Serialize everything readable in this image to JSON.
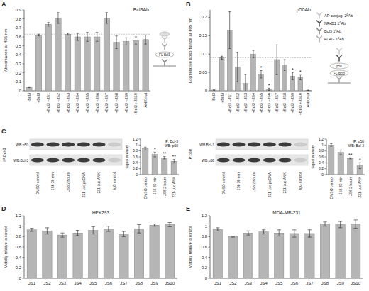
{
  "chart_data": [
    {
      "panel": "A",
      "type": "bar",
      "title": "Bcl3Ab",
      "y_label": "Absorbance at 405 nm",
      "categories": [
        "-Bcl3",
        "+Bcl3",
        "+Bcl3 +JS1",
        "+Bcl3 +JS2",
        "+Bcl3 +JS3",
        "+Bcl3 +JS4",
        "+Bcl3 +JS5",
        "+Bcl3 +JS6",
        "+Bcl3 +JS7",
        "+Bcl3 +JS8",
        "+Bcl3 +JS9",
        "+Bcl3 +JS10",
        "ANKmut"
      ],
      "values": [
        0.04,
        0.62,
        0.74,
        0.81,
        0.63,
        0.6,
        0.6,
        0.6,
        0.81,
        0.54,
        0.55,
        0.56,
        0.57
      ],
      "errors": [
        0.005,
        0.01,
        0.02,
        0.06,
        0.01,
        0.04,
        0.05,
        0.05,
        0.06,
        0.07,
        0.04,
        0.04,
        0.05
      ],
      "color": "#b5b5b5",
      "ylim": [
        0,
        0.9
      ],
      "yticks": [
        0,
        0.1,
        0.2,
        0.3,
        0.4,
        0.5,
        0.6,
        0.7,
        0.8,
        0.9
      ],
      "reference_line": 0.63,
      "diagram_labels": [
        "FL-Bcl3"
      ]
    },
    {
      "panel": "B",
      "type": "bar",
      "title": "p50Ab",
      "y_label": "Log relative absorbance at 405 nm",
      "categories": [
        "-Bcl3",
        "+Bcl3",
        "+Bcl3 +JS1",
        "+Bcl3 +JS2",
        "+Bcl3 +JS3",
        "+Bcl3 +JS4",
        "+Bcl3 +JS5",
        "+Bcl3 +JS6",
        "+Bcl3 +JS7",
        "+Bcl3 +JS8",
        "+Bcl3 +JS9",
        "+Bcl3 +JS10",
        "ANKmut"
      ],
      "values": [
        0.002,
        0.09,
        0.165,
        0.065,
        0.02,
        0.1,
        0.045,
        0.004,
        0.085,
        0.07,
        0.04,
        0.037,
        0.001
      ],
      "errors": [
        0.001,
        0.004,
        0.05,
        0.04,
        0.025,
        0.01,
        0.01,
        0.003,
        0.04,
        0.015,
        0.01,
        0.007,
        0.001
      ],
      "significance": [
        null,
        null,
        null,
        null,
        null,
        null,
        "*",
        "*",
        null,
        null,
        "*",
        "*",
        null
      ],
      "color": "#b5b5b5",
      "ylim": [
        0,
        0.22
      ],
      "yticks": [
        0,
        0.05,
        0.1,
        0.15,
        0.2
      ],
      "reference_line": 0.09,
      "diagram_labels": [
        "p50",
        "FL-Bcl3"
      ],
      "antibody_legend": [
        {
          "label": "AP-conjug. 2ºAb",
          "color": "#c8c8c8"
        },
        {
          "label": "NFκB1 1ºAb",
          "color": "#555555"
        },
        {
          "label": "Bcl3 1ºAb",
          "color": "#888888"
        },
        {
          "label": "FLAG 1ºAb",
          "color": "#aaaaaa"
        }
      ]
    },
    {
      "panel": "C",
      "type": "bar",
      "y_label": "Signal intensity",
      "inset_title": [
        "IP: Bcl-3",
        "WB: p50"
      ],
      "blot": {
        "ip_label": "IP:Bcl-3",
        "rows": [
          "WB:p50",
          "WB:Bcl-3"
        ],
        "lanes": [
          "DMSO control",
          "JS6 30 min",
          "JS6 2 hours",
          "231-Luc pcDNA",
          "231-Luc ANK",
          "IgG control"
        ]
      },
      "categories": [
        "DMSO control",
        "JS6 30 min",
        "JS6 2 hours",
        "231-Luc ANK"
      ],
      "values": [
        0.88,
        0.68,
        0.57,
        0.45
      ],
      "errors": [
        0.05,
        0.08,
        0.04,
        0.06
      ],
      "significance": [
        null,
        "*",
        "**",
        "**"
      ],
      "color": "#b5b5b5",
      "ylim": [
        0,
        1.2
      ],
      "yticks": [
        0,
        0.2,
        0.4,
        0.6,
        0.8,
        1,
        1.2
      ]
    },
    {
      "type": "bar",
      "y_label": "Signal intensity",
      "inset_title": [
        "IP: p50",
        "WB: Bcl-3"
      ],
      "blot": {
        "ip_label": "IP:p50",
        "rows": [
          "WB:Bcl-3",
          "WB:p50"
        ],
        "lanes": [
          "DMSO control",
          "JS6 30 min",
          "JS6 2 hours",
          "231-Luc pcDNA",
          "231-Luc ANK",
          "IgG control"
        ]
      },
      "categories": [
        "DMSO control",
        "JS6 30 min",
        "JS6 2 hours",
        "231-Luc ANK"
      ],
      "values": [
        1.0,
        0.75,
        0.55,
        0.3
      ],
      "errors": [
        0.04,
        0.08,
        0.02,
        0.1
      ],
      "significance": [
        null,
        null,
        "**",
        "*"
      ],
      "color": "#b5b5b5",
      "ylim": [
        0,
        1.2
      ],
      "yticks": [
        0,
        0.2,
        0.4,
        0.6,
        0.8,
        1,
        1.2
      ]
    },
    {
      "panel": "D",
      "type": "bar",
      "title": "HEK293",
      "y_label": "Viability relative to control",
      "categories": [
        "JS1",
        "JS2",
        "JS3",
        "JS4",
        "JS5",
        "JS6",
        "JS7",
        "JS8",
        "JS9",
        "JS10"
      ],
      "values": [
        0.93,
        0.91,
        0.83,
        0.87,
        0.92,
        0.95,
        0.85,
        0.95,
        1.02,
        1.03
      ],
      "errors": [
        0.03,
        0.06,
        0.04,
        0.05,
        0.07,
        0.05,
        0.05,
        0.08,
        0.02,
        0.04
      ],
      "color": "#b5b5b5",
      "ylim": [
        0,
        1.2
      ],
      "yticks": [
        0,
        0.2,
        0.4,
        0.6,
        0.8,
        1,
        1.2
      ]
    },
    {
      "panel": "E",
      "type": "bar",
      "title": "MDA-MB-231",
      "y_label": "Viability relative to control",
      "categories": [
        "JS1",
        "JS2",
        "JS3",
        "JS4",
        "JS5",
        "JS6",
        "JS7",
        "JS8",
        "JS9",
        "JS10"
      ],
      "values": [
        0.94,
        0.8,
        0.87,
        0.89,
        0.87,
        0.86,
        0.86,
        1.04,
        1.03,
        1.04
      ],
      "errors": [
        0.03,
        0.01,
        0.04,
        0.04,
        0.06,
        0.07,
        0.07,
        0.04,
        0.06,
        0.08
      ],
      "color": "#b5b5b5",
      "ylim": [
        0,
        1.2
      ],
      "yticks": [
        0,
        0.2,
        0.4,
        0.6,
        0.8,
        1,
        1.2
      ]
    }
  ]
}
